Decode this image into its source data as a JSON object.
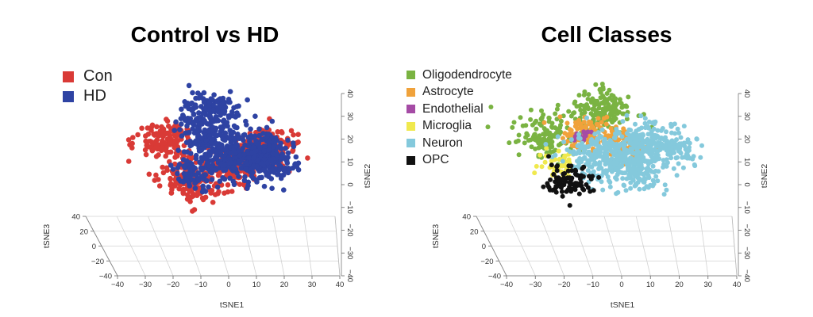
{
  "chart_data": [
    {
      "type": "scatter",
      "projection": "3d",
      "title": "Control vs HD",
      "xlabel": "tSNE1",
      "ylabel": "tSNE2",
      "zlabel": "tSNE3",
      "x_ticks": [
        "−40",
        "−30",
        "−20",
        "−10",
        "0",
        "10",
        "20",
        "30",
        "40"
      ],
      "y_ticks": [
        "−40",
        "−30",
        "−20",
        "−10",
        "0",
        "10",
        "20",
        "30",
        "40"
      ],
      "z_ticks": [
        "40",
        "20",
        "0",
        "−20",
        "−40"
      ],
      "xlim": [
        -40,
        40
      ],
      "ylim": [
        -40,
        40
      ],
      "zlim": [
        -40,
        40
      ],
      "legend": "top-left",
      "series": [
        {
          "name": "Con",
          "color": "#d93a36",
          "clusters": [
            {
              "x": -30,
              "y": 10,
              "n": 130
            },
            {
              "x": -14,
              "y": -20,
              "n": 170
            },
            {
              "x": 8,
              "y": -10,
              "n": 110
            },
            {
              "x": 16,
              "y": 1,
              "n": 140
            },
            {
              "x": 25,
              "y": 4,
              "n": 100
            }
          ]
        },
        {
          "name": "HD",
          "color": "#2e43a3",
          "clusters": [
            {
              "x": -5,
              "y": 32,
              "n": 150
            },
            {
              "x": -6,
              "y": 13,
              "n": 160
            },
            {
              "x": -14,
              "y": -14,
              "n": 90
            },
            {
              "x": 4,
              "y": -5,
              "n": 110
            },
            {
              "x": 14,
              "y": -6,
              "n": 130
            },
            {
              "x": 27,
              "y": -6,
              "n": 90
            },
            {
              "x": 22,
              "y": 6,
              "n": 80
            }
          ]
        }
      ]
    },
    {
      "type": "scatter",
      "projection": "3d",
      "title": "Cell Classes",
      "xlabel": "tSNE1",
      "ylabel": "tSNE2",
      "zlabel": "tSNE3",
      "x_ticks": [
        "−40",
        "−30",
        "−20",
        "−10",
        "0",
        "10",
        "20",
        "30",
        "40"
      ],
      "y_ticks": [
        "−40",
        "−30",
        "−20",
        "−10",
        "0",
        "10",
        "20",
        "30",
        "40"
      ],
      "z_ticks": [
        "40",
        "20",
        "0",
        "−20",
        "−40"
      ],
      "xlim": [
        -40,
        40
      ],
      "ylim": [
        -40,
        40
      ],
      "zlim": [
        -40,
        40
      ],
      "legend": "top-left",
      "series": [
        {
          "name": "Oligodendrocyte",
          "color": "#7ab342",
          "clusters": [
            {
              "x": -30,
              "y": 14,
              "n": 130
            },
            {
              "x": -5,
              "y": 34,
              "n": 170
            }
          ]
        },
        {
          "name": "Astrocyte",
          "color": "#f0a23b",
          "clusters": [
            {
              "x": -12,
              "y": 17,
              "n": 110
            },
            {
              "x": 6,
              "y": 6,
              "n": 90
            }
          ]
        },
        {
          "name": "Endothelial",
          "color": "#a54ba5",
          "clusters": [
            {
              "x": -15,
              "y": 14,
              "n": 14
            }
          ]
        },
        {
          "name": "Microglia",
          "color": "#f0e94e",
          "clusters": [
            {
              "x": -24,
              "y": -8,
              "n": 55
            }
          ]
        },
        {
          "name": "Neuron",
          "color": "#84c9dc",
          "clusters": [
            {
              "x": -8,
              "y": -2,
              "n": 170
            },
            {
              "x": 8,
              "y": 0,
              "n": 150
            },
            {
              "x": 16,
              "y": 8,
              "n": 160
            },
            {
              "x": 12,
              "y": -18,
              "n": 90
            },
            {
              "x": 28,
              "y": 2,
              "n": 80
            }
          ]
        },
        {
          "name": "OPC",
          "color": "#111111",
          "clusters": [
            {
              "x": -20,
              "y": -22,
              "n": 90
            }
          ]
        }
      ]
    }
  ]
}
